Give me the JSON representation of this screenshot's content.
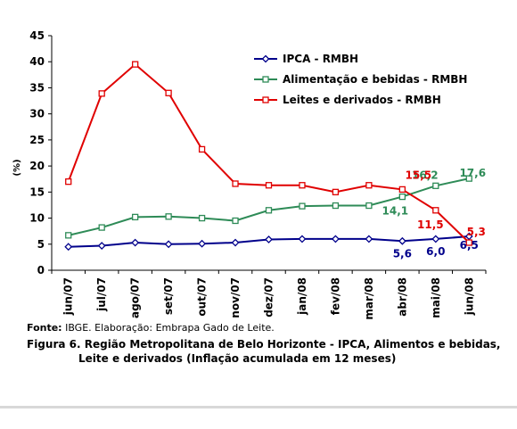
{
  "chart_data": {
    "type": "line",
    "ylabel": "(%)",
    "ylim": [
      0,
      45
    ],
    "ytick_step": 5,
    "yticks": [
      "0",
      "5",
      "10",
      "15",
      "20",
      "25",
      "30",
      "35",
      "40",
      "45"
    ],
    "categories": [
      "jun/07",
      "jul/07",
      "ago/07",
      "set/07",
      "out/07",
      "nov/07",
      "dez/07",
      "jan/08",
      "fev/08",
      "mar/08",
      "abr/08",
      "mai/08",
      "jun/08"
    ],
    "grid": false,
    "legend_position": "top-right",
    "series": [
      {
        "name": "IPCA - RMBH",
        "color": "#00008b",
        "marker": "diamond",
        "values": [
          4.5,
          4.7,
          5.3,
          5.0,
          5.1,
          5.3,
          5.9,
          6.0,
          6.0,
          6.0,
          5.6,
          6.0,
          6.5
        ],
        "data_labels": [
          {
            "index": 10,
            "text": "5,6"
          },
          {
            "index": 11,
            "text": "6,0"
          },
          {
            "index": 12,
            "text": "6,5"
          }
        ]
      },
      {
        "name": "Alimentação e bebidas - RMBH",
        "color": "#2e8b57",
        "marker": "square",
        "values": [
          6.7,
          8.2,
          10.2,
          10.3,
          10.0,
          9.5,
          11.5,
          12.3,
          12.4,
          12.4,
          14.1,
          16.2,
          17.6
        ],
        "data_labels": [
          {
            "index": 10,
            "text": "14,1"
          },
          {
            "index": 11,
            "text": "16,2"
          },
          {
            "index": 12,
            "text": "17,6"
          }
        ]
      },
      {
        "name": "Leites e derivados - RMBH",
        "color": "#e00000",
        "marker": "square",
        "values": [
          17.0,
          33.9,
          39.5,
          34.0,
          23.2,
          16.6,
          16.3,
          16.3,
          15.0,
          16.3,
          15.5,
          11.5,
          5.3
        ],
        "data_labels": [
          {
            "index": 10,
            "text": "15,5"
          },
          {
            "index": 11,
            "text": "11,5"
          },
          {
            "index": 12,
            "text": "5,3"
          }
        ]
      }
    ]
  },
  "footer": {
    "source_label": "Fonte:",
    "source_text": " IBGE. Elaboração: Embrapa Gado de Leite.",
    "caption_line1": "Figura 6. Região Metropolitana de Belo Horizonte - IPCA, Alimentos e bebidas,",
    "caption_line2": "Leite e derivados (Inflação acumulada em 12 meses)"
  }
}
